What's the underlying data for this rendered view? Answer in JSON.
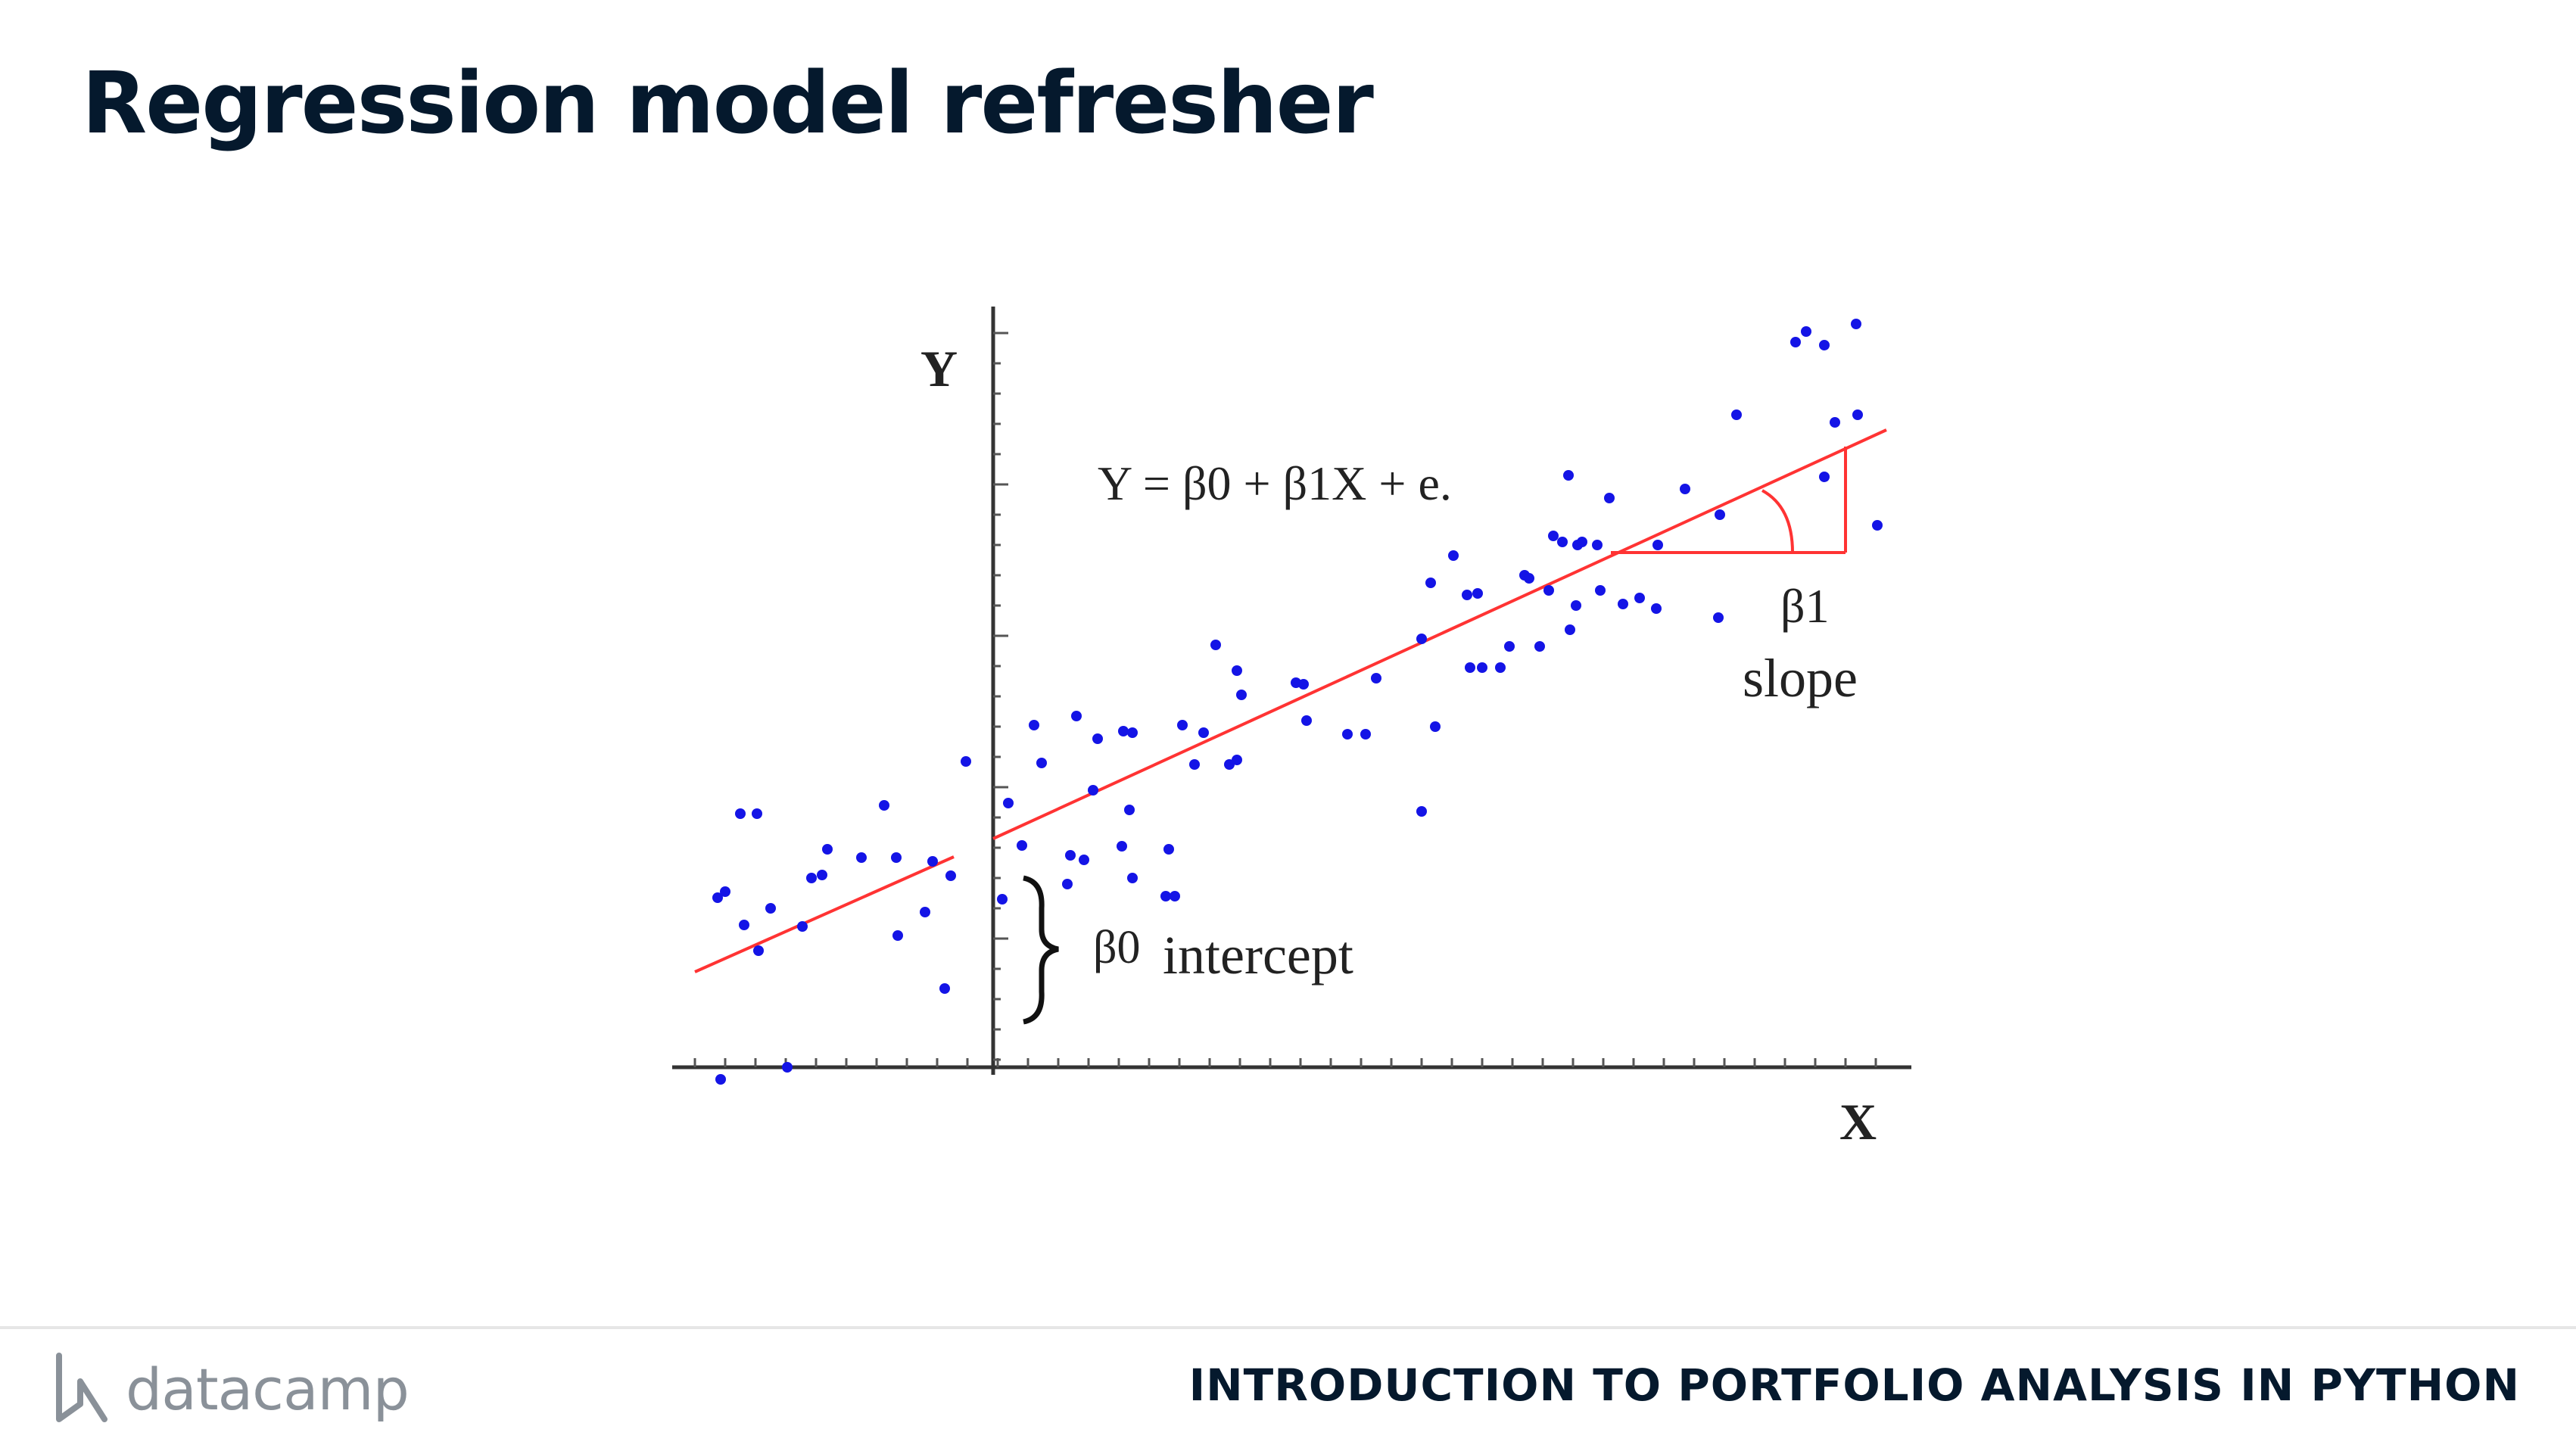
{
  "slide": {
    "title": "Regression model refresher"
  },
  "figure": {
    "y_axis_label": "Y",
    "x_axis_label": "X",
    "equation": "Y = β0 + β1X + e.",
    "slope_symbol": "β1",
    "slope_label": "slope",
    "intercept_symbol": "β0",
    "intercept_label": "intercept",
    "colors": {
      "points": "#1414e6",
      "regression_line": "#ff3333",
      "axes": "#333333"
    }
  },
  "footer": {
    "brand": "datacamp",
    "course": "INTRODUCTION TO PORTFOLIO ANALYSIS IN PYTHON"
  }
}
